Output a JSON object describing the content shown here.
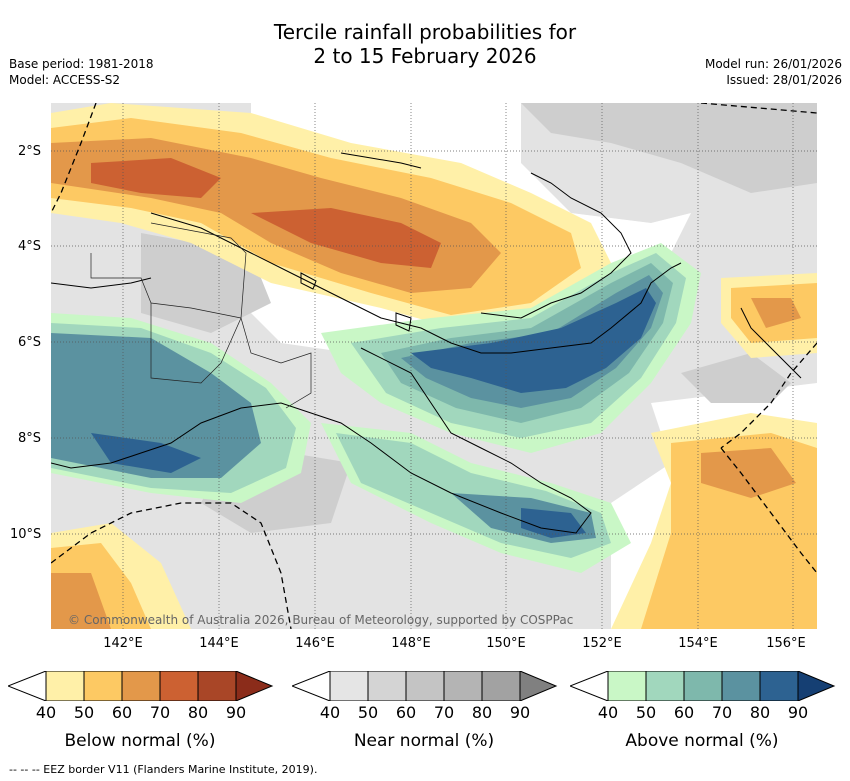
{
  "title_line1": "Tercile rainfall probabilities for",
  "title_line2": "2 to 15 February 2026",
  "base_period": "Base period: 1981-2018",
  "model": "Model: ACCESS-S2",
  "model_run": "Model run: 26/01/2026",
  "issued": "Issued: 28/01/2026",
  "copyright": "© Commonwealth of Australia 2026, Bureau of Meteorology, supported by COSPPac",
  "footer": "--  --  -- EEZ border V11 (Flanders Marine Institute, 2019).",
  "lat_labels": [
    "2°S",
    "4°S",
    "6°S",
    "8°S",
    "10°S"
  ],
  "lon_labels": [
    "142°E",
    "144°E",
    "146°E",
    "148°E",
    "150°E",
    "152°E",
    "154°E",
    "156°E"
  ],
  "colorbars": [
    {
      "title": "Below normal (%)",
      "ticks": [
        "40",
        "50",
        "60",
        "70",
        "80",
        "90"
      ],
      "colors": [
        "#fff0a8",
        "#fdc963",
        "#e3984a",
        "#cc6132",
        "#a94627",
        "#8b2c1a"
      ]
    },
    {
      "title": "Near normal (%)",
      "ticks": [
        "40",
        "50",
        "60",
        "70",
        "80",
        "90"
      ],
      "colors": [
        "#e5e5e5",
        "#d4d4d4",
        "#c4c4c4",
        "#b4b4b4",
        "#a2a2a2",
        "#808080"
      ]
    },
    {
      "title": "Above normal (%)",
      "ticks": [
        "40",
        "50",
        "60",
        "70",
        "80",
        "90"
      ],
      "colors": [
        "#c9f7c6",
        "#a1d7bd",
        "#7eb8ac",
        "#5b92a0",
        "#2d6291",
        "#153f73"
      ]
    }
  ]
}
